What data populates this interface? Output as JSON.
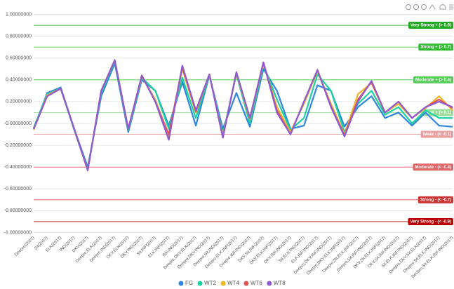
{
  "chart_data": {
    "type": "line",
    "categories": [
      "Deepro(2017)",
      "Sit(2017)",
      "ELK(2017)",
      "IND(2017)",
      "DKV(2017)",
      "Deepro,ELK(2017)",
      "Deepro,IND(2017)",
      "DKV,ELK(2017)",
      "DKV,IND(2017)",
      "Sit,INF(2017)",
      "ELK,INF(2017)",
      "INF,IND(2017)",
      "Deepro,DKV,ELK(2017)",
      "Deepro,DKV,IND(2017)",
      "Deepro,Sit,IND(2017)",
      "Deepro,ELK,INF(2017)",
      "Deepro,INF,IND(2017)",
      "DKV,Sit,INF(2017)",
      "DKV,ELK,INF(2017)",
      "DKV,INF,IND(2017)",
      "Sit,ELK,IND(2017)",
      "ELK,INF,IND(2017)",
      "Deepro,DKV,INF,IND(2017)",
      "Deepro,DKV,ELK,INF(2017)",
      "Deepro,Sit,ELK,INF(2017)",
      "Deepro,Sit,INF,IND(2017)",
      "DKV,Sit,ELK,INF(2017)",
      "DKV,Sit,INF,IND(2017)",
      "Sit,ELK,INF,IND(2017)",
      "Deepro,DKV,Sit,ELK(2017)",
      "Deepro,Sit,ELK,IND(2017)",
      "Deepro,Sit,ELK,INF,IND(2017)"
    ],
    "series": [
      {
        "name": "FG",
        "color": "#2e86de",
        "values": [
          -0.05,
          0.28,
          0.33,
          -0.05,
          -0.4,
          0.25,
          0.55,
          -0.08,
          0.4,
          0.3,
          -0.02,
          0.38,
          -0.02,
          0.44,
          -0.05,
          0.28,
          -0.03,
          0.5,
          0.3,
          -0.05,
          -0.02,
          0.35,
          0.3,
          -0.03,
          0.15,
          0.25,
          0.05,
          0.1,
          -0.02,
          0.1,
          -0.02,
          -0.03
        ]
      },
      {
        "name": "WT2",
        "color": "#1dd1a1",
        "values": [
          -0.04,
          0.27,
          0.32,
          -0.06,
          -0.42,
          0.28,
          0.57,
          -0.06,
          0.42,
          0.3,
          -0.05,
          0.42,
          0.05,
          0.45,
          -0.1,
          0.45,
          0.0,
          0.54,
          0.22,
          -0.06,
          0.05,
          0.45,
          0.3,
          -0.08,
          0.18,
          0.3,
          0.08,
          0.15,
          0.0,
          0.12,
          0.05,
          0.05
        ]
      },
      {
        "name": "WT4",
        "color": "#f0b429",
        "values": [
          -0.06,
          0.26,
          0.32,
          -0.05,
          -0.43,
          0.3,
          0.58,
          -0.05,
          0.43,
          0.22,
          -0.12,
          0.5,
          0.1,
          0.45,
          -0.12,
          0.46,
          0.04,
          0.55,
          0.15,
          -0.08,
          0.18,
          0.48,
          0.18,
          -0.1,
          0.27,
          0.37,
          0.1,
          0.18,
          0.05,
          0.14,
          0.25,
          0.12
        ]
      },
      {
        "name": "WT6",
        "color": "#e05555",
        "values": [
          -0.05,
          0.25,
          0.32,
          -0.05,
          -0.43,
          0.3,
          0.58,
          -0.05,
          0.44,
          0.2,
          -0.1,
          0.52,
          0.11,
          0.45,
          -0.13,
          0.47,
          0.05,
          0.56,
          0.12,
          -0.1,
          0.2,
          0.49,
          0.16,
          -0.11,
          0.22,
          0.38,
          0.1,
          0.2,
          0.05,
          0.15,
          0.22,
          0.14
        ]
      },
      {
        "name": "WT8",
        "color": "#8e5bd0",
        "values": [
          -0.05,
          0.25,
          0.32,
          -0.05,
          -0.43,
          0.3,
          0.58,
          -0.05,
          0.44,
          0.2,
          -0.15,
          0.53,
          0.12,
          0.45,
          -0.13,
          0.47,
          0.05,
          0.56,
          0.1,
          -0.1,
          0.2,
          0.49,
          0.15,
          -0.12,
          0.2,
          0.39,
          0.1,
          0.2,
          0.05,
          0.15,
          0.2,
          0.15
        ]
      }
    ],
    "ylim": [
      -1,
      1
    ],
    "yticks": [
      {
        "value": -1,
        "label": "-1.00000000"
      },
      {
        "value": -0.8,
        "label": "-0.80000000"
      },
      {
        "value": -0.6,
        "label": "-0.60000000"
      },
      {
        "value": -0.4,
        "label": "-0.40000000"
      },
      {
        "value": -0.2,
        "label": "-0.20000000"
      },
      {
        "value": 0,
        "label": "-0.00000000"
      },
      {
        "value": 0.2,
        "label": "0.20000000"
      },
      {
        "value": 0.4,
        "label": "0.40000000"
      },
      {
        "value": 0.6,
        "label": "0.60000000"
      },
      {
        "value": 0.8,
        "label": "0.80000000"
      },
      {
        "value": 1,
        "label": "1.00000000"
      }
    ],
    "grid": true,
    "annotations": [
      {
        "value": 0.9,
        "label": "Very Strong + (> 0.9)",
        "color": "#22aa22"
      },
      {
        "value": 0.7,
        "label": "Strong + (> 0.7)",
        "color": "#33bb33"
      },
      {
        "value": 0.4,
        "label": "Moderate + (> 0.4)",
        "color": "#55cc55"
      },
      {
        "value": 0.1,
        "label": "Weak + (> 0.1)",
        "color": "#99dd99"
      },
      {
        "value": -0.1,
        "label": "Weak - (< -0.1)",
        "color": "#e8a0a0"
      },
      {
        "value": -0.4,
        "label": "Moderate - (< -0.4)",
        "color": "#dd6666"
      },
      {
        "value": -0.7,
        "label": "Strong - (< -0.7)",
        "color": "#cc3333"
      },
      {
        "value": -0.9,
        "label": "Very Strong - (< -0.9)",
        "color": "#bb0000"
      }
    ]
  }
}
